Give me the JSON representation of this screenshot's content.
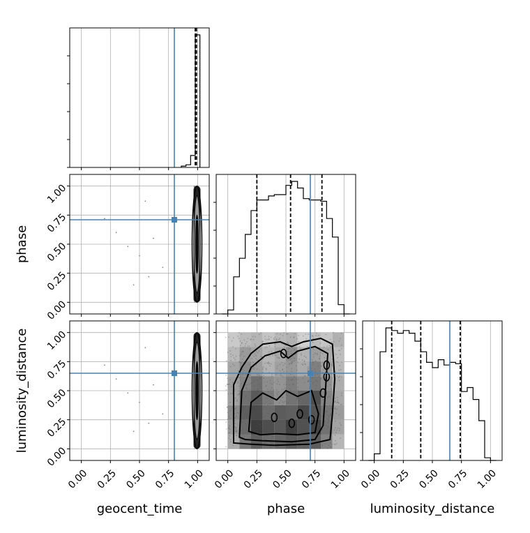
{
  "chart_data": {
    "type": "corner",
    "parameters": [
      "geocent_time",
      "phase",
      "luminosity_distance"
    ],
    "axis_labels": {
      "x": [
        "geocent_time",
        "phase",
        "luminosity_distance"
      ],
      "y": [
        "phase",
        "luminosity_distance"
      ]
    },
    "range": [
      -0.1,
      1.1
    ],
    "ticks": [
      0.0,
      0.25,
      0.5,
      0.75,
      1.0
    ],
    "tick_labels": [
      "0.00",
      "0.25",
      "0.50",
      "0.75",
      "1.00"
    ],
    "grid": true,
    "truths": {
      "geocent_time": 0.8,
      "phase": 0.71,
      "luminosity_distance": 0.65
    },
    "truth_color": "#4682b4",
    "hist_color": "#000000",
    "histograms": [
      {
        "parameter": "geocent_time",
        "bin_width": 0.04,
        "bins": [
          [
            0.86,
            0.01
          ],
          [
            0.9,
            0.02
          ],
          [
            0.94,
            0.09
          ],
          [
            0.98,
            1.0
          ]
        ],
        "quantiles": [
          0.98,
          0.985,
          0.99
        ]
      },
      {
        "parameter": "phase",
        "bin_width": 0.05,
        "bins": [
          [
            -0.05,
            0.0
          ],
          [
            0.0,
            0.03
          ],
          [
            0.05,
            0.28
          ],
          [
            0.1,
            0.42
          ],
          [
            0.15,
            0.6
          ],
          [
            0.2,
            0.78
          ],
          [
            0.25,
            0.86
          ],
          [
            0.3,
            0.86
          ],
          [
            0.35,
            0.89
          ],
          [
            0.4,
            0.9
          ],
          [
            0.45,
            0.9
          ],
          [
            0.5,
            0.97
          ],
          [
            0.55,
            1.0
          ],
          [
            0.6,
            0.95
          ],
          [
            0.65,
            0.87
          ],
          [
            0.7,
            0.86
          ],
          [
            0.75,
            0.86
          ],
          [
            0.8,
            0.85
          ],
          [
            0.85,
            0.72
          ],
          [
            0.9,
            0.58
          ],
          [
            0.95,
            0.07
          ],
          [
            1.0,
            0.0
          ]
        ],
        "quantiles": [
          0.25,
          0.54,
          0.81
        ]
      },
      {
        "parameter": "luminosity_distance",
        "bin_width": 0.05,
        "bins": [
          [
            -0.05,
            0.0
          ],
          [
            0.0,
            0.05
          ],
          [
            0.05,
            0.82
          ],
          [
            0.1,
            1.0
          ],
          [
            0.15,
            0.98
          ],
          [
            0.2,
            0.96
          ],
          [
            0.25,
            0.98
          ],
          [
            0.3,
            0.96
          ],
          [
            0.35,
            0.9
          ],
          [
            0.4,
            0.82
          ],
          [
            0.45,
            0.74
          ],
          [
            0.5,
            0.7
          ],
          [
            0.55,
            0.76
          ],
          [
            0.6,
            0.72
          ],
          [
            0.65,
            0.74
          ],
          [
            0.7,
            0.73
          ],
          [
            0.75,
            0.52
          ],
          [
            0.8,
            0.55
          ],
          [
            0.85,
            0.46
          ],
          [
            0.9,
            0.3
          ],
          [
            0.95,
            0.02
          ],
          [
            1.0,
            0.0
          ]
        ],
        "quantiles": [
          0.15,
          0.4,
          0.74
        ]
      }
    ],
    "pairs": [
      {
        "x": "geocent_time",
        "y": "phase"
      },
      {
        "x": "geocent_time",
        "y": "luminosity_distance"
      },
      {
        "x": "phase",
        "y": "luminosity_distance"
      }
    ]
  }
}
